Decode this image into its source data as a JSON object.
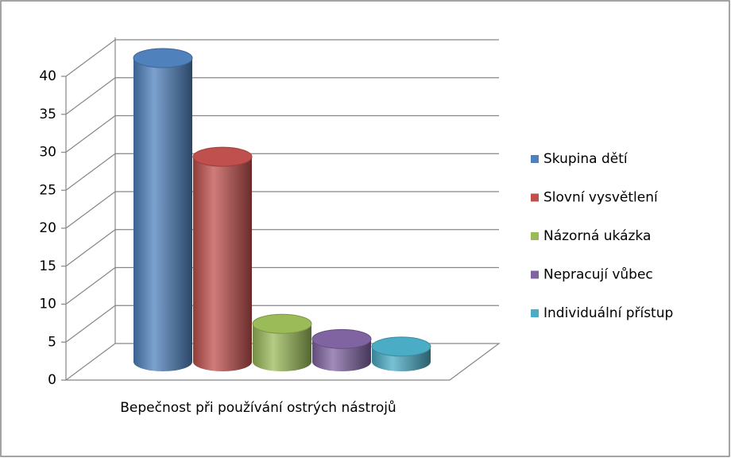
{
  "chart_data": {
    "type": "cylinder3d",
    "categories": [
      "Bepečnost při používání ostrých nástrojů"
    ],
    "series": [
      {
        "name": "Skupina dětí",
        "color": "#4f81bd",
        "values": [
          40
        ]
      },
      {
        "name": "Slovní vysvětlení",
        "color": "#c0504d",
        "values": [
          27
        ]
      },
      {
        "name": "Názorná ukázka",
        "color": "#9bbb59",
        "values": [
          5
        ]
      },
      {
        "name": "Nepracují vůbec",
        "color": "#8064a2",
        "values": [
          3
        ]
      },
      {
        "name": "Individuální přístup",
        "color": "#4bacc6",
        "values": [
          2
        ]
      }
    ],
    "ylim": [
      0,
      40
    ],
    "yticks": [
      0,
      5,
      10,
      15,
      20,
      25,
      30,
      35,
      40
    ],
    "grid": true,
    "legend": "right"
  }
}
